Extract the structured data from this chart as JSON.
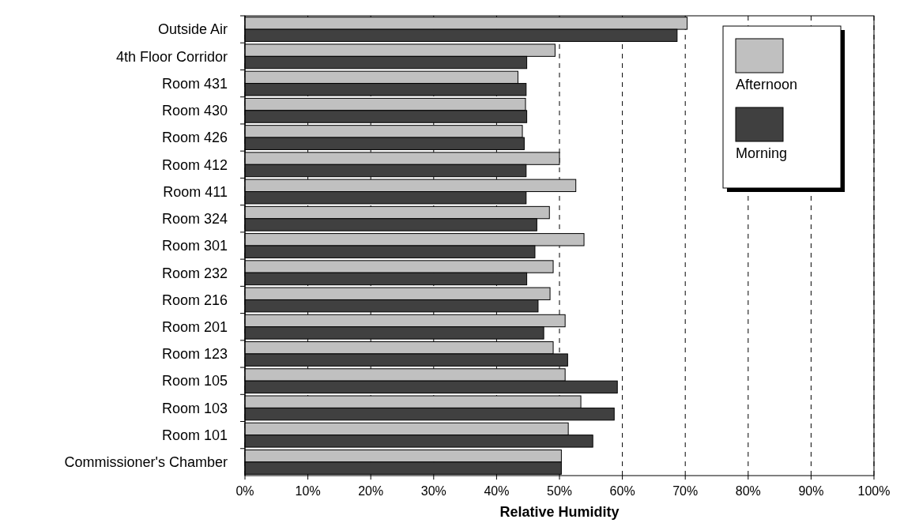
{
  "chart_data": {
    "type": "bar",
    "orientation": "horizontal",
    "xlabel": "Relative Humidity",
    "categories": [
      "Outside Air",
      "4th Floor Corridor",
      "Room 431",
      "Room 430",
      "Room 426",
      "Room 412",
      "Room 411",
      "Room 324",
      "Room 301",
      "Room 232",
      "Room 216",
      "Room 201",
      "Room 123",
      "Room 105",
      "Room 103",
      "Room 101",
      "Commissioner's Chamber"
    ],
    "series": [
      {
        "name": "Afternoon",
        "color": "#c0c0c0",
        "values": [
          70.3,
          49.3,
          43.4,
          44.6,
          44.1,
          50.0,
          52.6,
          48.4,
          53.9,
          49.0,
          48.5,
          50.9,
          49.0,
          50.9,
          53.4,
          51.4,
          50.3
        ]
      },
      {
        "name": "Morning",
        "color": "#404040",
        "values": [
          68.7,
          44.8,
          44.7,
          44.8,
          44.4,
          44.7,
          44.7,
          46.4,
          46.1,
          44.8,
          46.6,
          47.5,
          51.3,
          59.2,
          58.7,
          55.3,
          50.3
        ]
      }
    ],
    "xlim": [
      0,
      100
    ],
    "xticks": [
      {
        "value": 0,
        "label": "0%"
      },
      {
        "value": 10,
        "label": "10%"
      },
      {
        "value": 20,
        "label": "20%"
      },
      {
        "value": 30,
        "label": "30%"
      },
      {
        "value": 40,
        "label": "40%"
      },
      {
        "value": 50,
        "label": "50%"
      },
      {
        "value": 60,
        "label": "60%"
      },
      {
        "value": 70,
        "label": "70%"
      },
      {
        "value": 80,
        "label": "80%"
      },
      {
        "value": 90,
        "label": "90%"
      },
      {
        "value": 100,
        "label": "100%"
      }
    ],
    "grid": "x",
    "line_style": "dashed",
    "legend": "top right"
  }
}
